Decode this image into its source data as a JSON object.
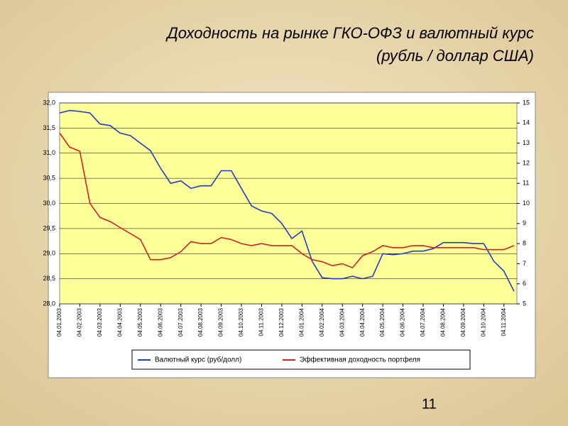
{
  "chart_data": {
    "type": "line",
    "title": "Доходность на рынке ГКО-ОФЗ  и валютный курс",
    "subtitle": "(рубль / доллар США)",
    "categories": [
      "04.01.2003",
      null,
      "04.02.2003",
      null,
      "04.03.2003",
      null,
      "04.04.2003",
      null,
      "04.05.2003",
      null,
      "04.06.2003",
      null,
      "04.07.2003",
      null,
      "04.08.2003",
      null,
      "04.09.2003",
      null,
      "04.10.2003",
      null,
      "04.11.2003",
      null,
      "04.12.2003",
      null,
      "04.01.2004",
      null,
      "04.02.2004",
      null,
      "04.03.2004",
      null,
      "04.04.2004",
      null,
      "04.05.2004",
      null,
      "04.06.2004",
      null,
      "04.07.2004",
      null,
      "04.08.2004",
      null,
      "04.09.2004",
      null,
      "04.10.2004",
      null,
      "04.11.2004",
      null
    ],
    "series": [
      {
        "name": "Валютный курс (руб/долл)",
        "color": "#1f3fbf",
        "values": [
          31.8,
          31.85,
          31.83,
          31.8,
          31.58,
          31.55,
          31.4,
          31.35,
          31.2,
          31.05,
          30.7,
          30.4,
          30.45,
          30.3,
          30.35,
          30.35,
          30.65,
          30.65,
          30.3,
          29.95,
          29.85,
          29.8,
          29.6,
          29.3,
          29.45,
          28.85,
          28.52,
          28.5,
          28.5,
          28.55,
          28.5,
          28.55,
          29.0,
          28.98,
          29.0,
          29.05,
          29.05,
          29.1,
          29.22,
          29.22,
          29.22,
          29.2,
          29.2,
          28.85,
          28.65,
          28.25
        ]
      },
      {
        "name": "Эффективная доходность портфеля",
        "color": "#d42020",
        "axis": "y2",
        "values": [
          13.5,
          12.8,
          12.6,
          10.0,
          9.3,
          9.1,
          8.8,
          8.5,
          8.2,
          7.2,
          7.2,
          7.3,
          7.6,
          8.1,
          8.0,
          8.0,
          8.3,
          8.2,
          8.0,
          7.9,
          8.0,
          7.9,
          7.9,
          7.9,
          7.5,
          7.2,
          7.1,
          6.9,
          7.0,
          6.8,
          7.4,
          7.6,
          7.9,
          7.8,
          7.8,
          7.9,
          7.9,
          7.8,
          7.8,
          7.8,
          7.8,
          7.8,
          7.7,
          7.7,
          7.7,
          7.9
        ]
      }
    ],
    "ylim": [
      28,
      32
    ],
    "yticks": [
      {
        "value": 28,
        "label": "28,0"
      },
      {
        "value": 28.5,
        "label": "28,5"
      },
      {
        "value": 29,
        "label": "29,0"
      },
      {
        "value": 29.5,
        "label": "29,5"
      },
      {
        "value": 30,
        "label": "30,0"
      },
      {
        "value": 30.5,
        "label": "30,5"
      },
      {
        "value": 31,
        "label": "31,0"
      },
      {
        "value": 31.5,
        "label": "31,5"
      },
      {
        "value": 32,
        "label": "32,0"
      }
    ],
    "y2lim": [
      5,
      15
    ],
    "y2ticks": [
      5,
      6,
      7,
      8,
      9,
      10,
      11,
      12,
      13,
      14,
      15
    ],
    "grid": true
  },
  "slide_number": "11"
}
